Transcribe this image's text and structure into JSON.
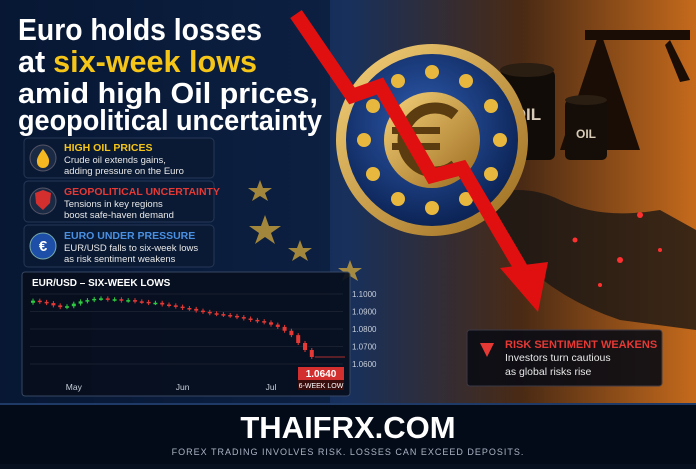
{
  "headline": {
    "line1": "Euro holds losses",
    "line2_prefix": "at",
    "line2_highlight": "six-week lows",
    "line3": "amid high Oil prices,",
    "line4": "geopolitical uncertainty"
  },
  "cards": [
    {
      "title": "HIGH OIL PRICES",
      "line1": "Crude oil extends gains,",
      "line2": "adding pressure on the Euro"
    },
    {
      "title": "GEOPOLITICAL UNCERTAINTY",
      "line1": "Tensions in key regions",
      "line2": "boost safe-haven demand"
    },
    {
      "title": "EURO UNDER PRESSURE",
      "line1": "EUR/USD falls to six-week lows",
      "line2": "as risk sentiment weakens"
    }
  ],
  "background": {
    "barrel_label": "OIL"
  },
  "chart_data": {
    "type": "candlestick",
    "title": "EUR/USD – SIX-WEEK LOWS",
    "categories": [
      null,
      null,
      null,
      null,
      null,
      null,
      "May",
      null,
      null,
      null,
      null,
      null,
      null,
      null,
      null,
      null,
      null,
      null,
      null,
      null,
      null,
      null,
      "Jun",
      null,
      null,
      null,
      null,
      null,
      null,
      null,
      null,
      null,
      null,
      null,
      null,
      "Jul",
      null,
      null,
      null,
      null,
      null,
      null
    ],
    "open": [
      1.095,
      1.0962,
      1.0955,
      1.0948,
      1.0935,
      1.0925,
      1.093,
      1.0945,
      1.0958,
      1.0965,
      1.0972,
      1.0975,
      1.0968,
      1.097,
      1.0962,
      1.0965,
      1.0958,
      1.0955,
      1.0948,
      1.095,
      1.094,
      1.0935,
      1.0928,
      1.092,
      1.0915,
      1.0905,
      1.0898,
      1.089,
      1.0885,
      1.088,
      1.0875,
      1.0868,
      1.086,
      1.0852,
      1.0845,
      1.0838,
      1.0825,
      1.0812,
      1.079,
      1.0765,
      1.072,
      1.068
    ],
    "close": [
      1.0962,
      1.0955,
      1.0948,
      1.0935,
      1.0925,
      1.093,
      1.0945,
      1.0958,
      1.0965,
      1.0972,
      1.0975,
      1.0968,
      1.097,
      1.0962,
      1.0965,
      1.0958,
      1.0955,
      1.0948,
      1.095,
      1.094,
      1.0935,
      1.0928,
      1.092,
      1.0915,
      1.0905,
      1.0898,
      1.089,
      1.0885,
      1.088,
      1.0875,
      1.0868,
      1.086,
      1.0852,
      1.0845,
      1.0838,
      1.0825,
      1.0812,
      1.079,
      1.0765,
      1.072,
      1.068,
      1.064
    ],
    "up_color": "#2ecc40",
    "down_color": "#e53935",
    "ylim": [
      1.056,
      1.104
    ],
    "yticks": [
      {
        "value": 1.1,
        "label": "1.1000"
      },
      {
        "value": 1.09,
        "label": "1.0900"
      },
      {
        "value": 1.08,
        "label": "1.0800"
      },
      {
        "value": 1.07,
        "label": "1.0700"
      },
      {
        "value": 1.06,
        "label": "1.0600"
      }
    ],
    "grid": true,
    "annotation": {
      "value": 1.064,
      "label": "1.0640",
      "note": "6-WEEK LOW"
    }
  },
  "risk_box": {
    "title": "RISK SENTIMENT WEAKENS",
    "line1": "Investors turn cautious",
    "line2": "as global risks rise"
  },
  "footer": {
    "brand": "THAIFRX.COM",
    "disclaimer": "FOREX TRADING INVOLVES RISK. LOSSES CAN EXCEED DEPOSITS."
  }
}
